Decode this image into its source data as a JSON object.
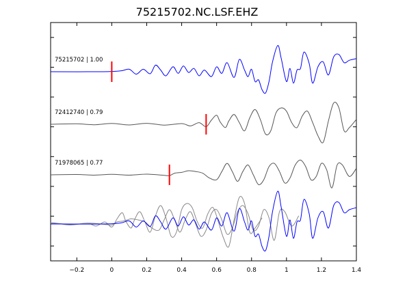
{
  "chart_data": {
    "type": "line",
    "title": "75215702.NC.LSF.EHZ",
    "xlabel": "",
    "ylabel": "",
    "xlim": [
      -0.35,
      1.4
    ],
    "x_ticks": [
      -0.2,
      0,
      0.2,
      0.4,
      0.6,
      0.8,
      1,
      1.2,
      1.4
    ],
    "x_tick_labels": [
      "−0.2",
      "0",
      "0.2",
      "0.4",
      "0.6",
      "0.8",
      "1",
      "1.2",
      "1.4"
    ],
    "grid": false,
    "traces": [
      {
        "label": "75215702 | 1.00",
        "event_id": "75215702",
        "correlation": 1.0,
        "color": "#0000ff",
        "pick_time": 0.0,
        "x": [
          -0.35,
          -0.05,
          0.05,
          0.1,
          0.14,
          0.18,
          0.22,
          0.25,
          0.28,
          0.31,
          0.35,
          0.38,
          0.41,
          0.44,
          0.47,
          0.5,
          0.53,
          0.57,
          0.6,
          0.63,
          0.66,
          0.7,
          0.73,
          0.76,
          0.78,
          0.8,
          0.82,
          0.84,
          0.86,
          0.88,
          0.9,
          0.92,
          0.95,
          0.97,
          1.0,
          1.02,
          1.04,
          1.06,
          1.08,
          1.1,
          1.13,
          1.15,
          1.18,
          1.21,
          1.24,
          1.27,
          1.3,
          1.33,
          1.36,
          1.4
        ],
        "y": [
          0,
          0,
          0.05,
          0.15,
          -0.15,
          0.15,
          -0.12,
          0.4,
          0.1,
          -0.25,
          0.3,
          -0.1,
          0.35,
          -0.05,
          0.2,
          -0.25,
          0.1,
          -0.3,
          0.3,
          -0.1,
          0.55,
          -0.35,
          0.75,
          0.1,
          -0.3,
          0.15,
          -0.6,
          -0.5,
          -1.1,
          -1.3,
          -0.6,
          0.6,
          1.6,
          0.8,
          -0.6,
          0.2,
          -0.7,
          0.1,
          0.2,
          1.2,
          0.5,
          -0.7,
          0.3,
          0.6,
          -0.2,
          0.9,
          1.05,
          0.55,
          0.7,
          0.8
        ]
      },
      {
        "label": "72412740 | 0.79",
        "event_id": "72412740",
        "correlation": 0.79,
        "color": "#555555",
        "pick_time": 0.54,
        "x": [
          -0.35,
          -0.2,
          -0.1,
          0.0,
          0.1,
          0.2,
          0.3,
          0.4,
          0.45,
          0.5,
          0.54,
          0.57,
          0.6,
          0.62,
          0.65,
          0.67,
          0.7,
          0.73,
          0.76,
          0.79,
          0.82,
          0.85,
          0.88,
          0.91,
          0.94,
          0.97,
          1.0,
          1.03,
          1.06,
          1.09,
          1.12,
          1.15,
          1.18,
          1.21,
          1.24,
          1.27,
          1.3,
          1.33,
          1.36,
          1.4
        ],
        "y": [
          0,
          0.03,
          -0.03,
          0.05,
          -0.04,
          0.06,
          -0.05,
          0.04,
          -0.1,
          0.1,
          -0.15,
          0.25,
          0.55,
          0.15,
          -0.2,
          0.2,
          0.6,
          0.1,
          -0.4,
          0.4,
          0.9,
          0.3,
          -0.6,
          -0.4,
          0.7,
          1.0,
          0.8,
          0.1,
          -0.2,
          0.5,
          0.8,
          0.1,
          -0.7,
          -1.1,
          0.2,
          1.3,
          1.0,
          -0.4,
          -0.2,
          0.3
        ]
      },
      {
        "label": "71978065 | 0.77",
        "event_id": "71978065",
        "correlation": 0.77,
        "color": "#555555",
        "pick_time": 0.33,
        "x": [
          -0.35,
          -0.2,
          -0.1,
          0.0,
          0.1,
          0.2,
          0.3,
          0.33,
          0.36,
          0.4,
          0.44,
          0.48,
          0.52,
          0.56,
          0.6,
          0.63,
          0.66,
          0.69,
          0.72,
          0.75,
          0.78,
          0.81,
          0.84,
          0.87,
          0.9,
          0.93,
          0.96,
          0.99,
          1.02,
          1.05,
          1.08,
          1.11,
          1.14,
          1.17,
          1.2,
          1.23,
          1.26,
          1.29,
          1.32,
          1.36,
          1.4
        ],
        "y": [
          0,
          0.02,
          -0.02,
          0.03,
          -0.02,
          0.04,
          -0.03,
          -0.05,
          0.1,
          0.15,
          0.25,
          0.2,
          0.1,
          -0.2,
          -0.3,
          0.2,
          0.7,
          0.2,
          -0.4,
          0.2,
          0.6,
          0.0,
          -0.6,
          -0.3,
          0.5,
          0.7,
          0.2,
          -0.5,
          -0.2,
          0.6,
          0.9,
          0.5,
          -0.3,
          -0.1,
          0.7,
          0.3,
          -0.8,
          0.6,
          0.6,
          -0.1,
          0.4
        ]
      }
    ]
  }
}
